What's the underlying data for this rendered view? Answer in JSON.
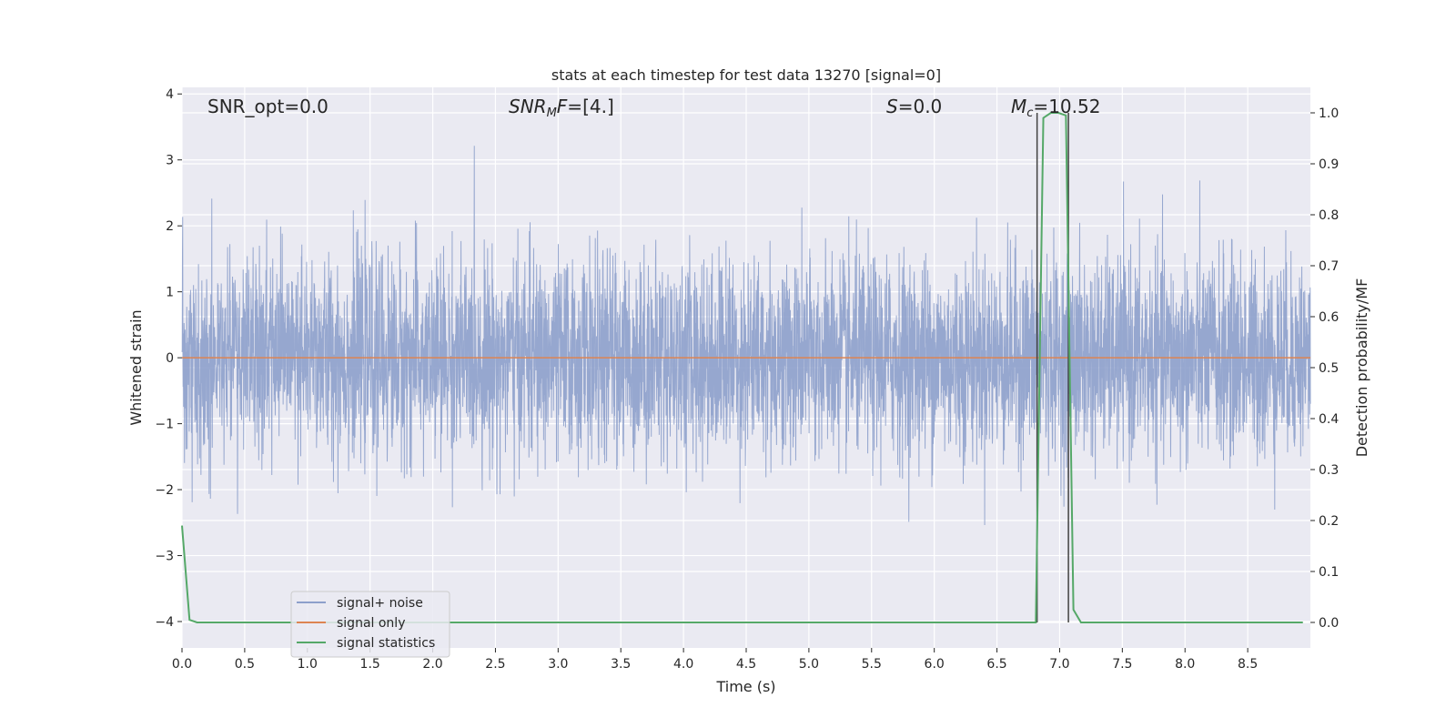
{
  "chart_data": {
    "type": "line",
    "title": "stats at each timestep for test data 13270 [signal=0]",
    "xlabel": "Time (s)",
    "ylabel_left": "Whitened strain",
    "ylabel_right": "Detection probability/MF",
    "xlim": [
      0.0,
      9.0
    ],
    "ylim_left": [
      -4.4,
      4.1
    ],
    "ylim_right": [
      -0.05,
      1.05
    ],
    "grid": true,
    "legend_position": "lower-left",
    "x_ticks": [
      "0.0",
      "0.5",
      "1.0",
      "1.5",
      "2.0",
      "2.5",
      "3.0",
      "3.5",
      "4.0",
      "4.5",
      "5.0",
      "5.5",
      "6.0",
      "6.5",
      "7.0",
      "7.5",
      "8.0",
      "8.5"
    ],
    "y_ticks_left": [
      "4",
      "3",
      "2",
      "1",
      "0",
      "−1",
      "−2",
      "−3",
      "−4"
    ],
    "y_ticks_right": [
      "1.0",
      "0.9",
      "0.8",
      "0.7",
      "0.6",
      "0.5",
      "0.4",
      "0.3",
      "0.2",
      "0.1",
      "0.0"
    ],
    "annotations": {
      "snr_opt": "SNR_opt=0.0",
      "snr_mf": "[4.]",
      "s_value": "0.0",
      "mc_value": "10.52"
    },
    "vertical_markers_x": [
      6.82,
      7.07
    ],
    "series": [
      {
        "name": "signal+ noise",
        "color": "#8da0cb",
        "noise_sigma": 0.75,
        "x_range": [
          0.0,
          9.0
        ]
      },
      {
        "name": "signal only",
        "color": "#dd8452",
        "x": [
          0.0,
          9.0
        ],
        "y": [
          0.0,
          0.0
        ]
      },
      {
        "name": "signal statistics",
        "color": "#55a868",
        "axis": "right",
        "x": [
          0.0,
          0.06,
          0.12,
          0.5,
          1.0,
          2.0,
          3.0,
          4.0,
          5.0,
          6.0,
          6.5,
          6.81,
          6.87,
          6.93,
          6.99,
          7.05,
          7.11,
          7.17,
          7.5,
          8.0,
          8.5,
          8.94
        ],
        "y": [
          0.19,
          0.005,
          0.0,
          0.0,
          0.0,
          0.0,
          0.0,
          0.0,
          0.0,
          0.0,
          0.0,
          0.0,
          0.99,
          1.0,
          1.0,
          0.995,
          0.025,
          0.0,
          0.0,
          0.0,
          0.0,
          0.0
        ]
      }
    ]
  },
  "colors": {
    "plot_background": "#eaeaf2",
    "grid": "#ffffff",
    "marker_line": "#404040"
  }
}
